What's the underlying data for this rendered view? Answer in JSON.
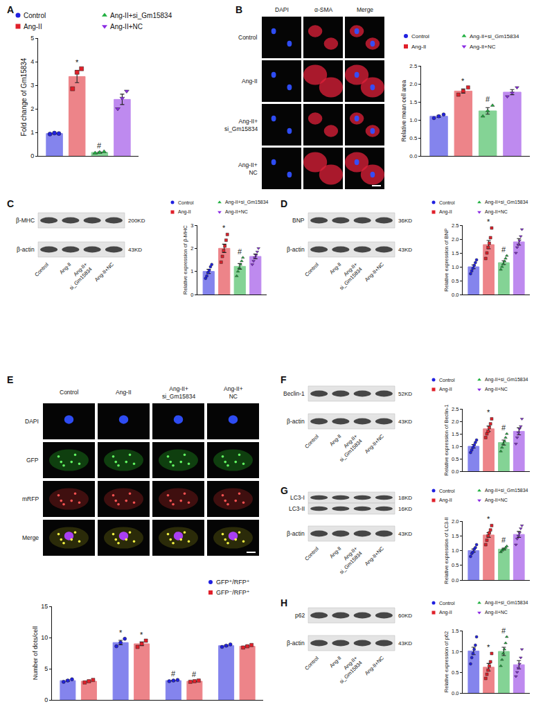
{
  "chart_data": [
    {
      "type": "bar",
      "categories": [
        null
      ],
      "ylabel": "Fold change of Gm15834",
      "ylim": [
        0,
        5
      ],
      "yticks": [
        0,
        1,
        2,
        3,
        4,
        5
      ],
      "grid": false,
      "tick_labels": "y",
      "legend": "top",
      "series": [
        {
          "name": "Control",
          "color": "#2020e0",
          "marker": "circle",
          "values": [
            0.95
          ],
          "errors": [
            0.02
          ],
          "points": [
            [
              0.93,
              0.97,
              0.95
            ]
          ]
        },
        {
          "name": "Ang-II",
          "color": "#e0202a",
          "marker": "square",
          "values": [
            3.37
          ],
          "errors": [
            0.26
          ],
          "points": [
            [
              2.85,
              3.55,
              3.7
            ]
          ]
        },
        {
          "name": "Ang-II+si_Gm15834",
          "color": "#20b040",
          "marker": "triangle-up",
          "values": [
            0.15
          ],
          "errors": [
            0.02
          ],
          "points": [
            [
              0.12,
              0.15,
              0.18
            ]
          ]
        },
        {
          "name": "Ang-II+NC",
          "color": "#8a2be2",
          "marker": "triangle-down",
          "values": [
            2.4
          ],
          "errors": [
            0.22
          ],
          "points": [
            [
              2.0,
              2.45,
              2.75
            ]
          ]
        }
      ],
      "annotations": [
        {
          "text": "*",
          "series": "Ang-II"
        },
        {
          "text": "#",
          "series": "Ang-II+si_Gm15834"
        }
      ]
    },
    {
      "type": "bar",
      "categories": [
        null
      ],
      "ylabel": "Relative mean cell area",
      "ylim": [
        0,
        2.5
      ],
      "yticks": [
        {
          "value": 0,
          "label": "0.0"
        },
        0.5,
        {
          "value": 1,
          "label": "1.0"
        },
        1.5,
        {
          "value": 2,
          "label": "2.0"
        },
        2.5
      ],
      "grid": false,
      "tick_labels": "y",
      "legend": "top",
      "series": [
        {
          "name": "Control",
          "color": "#2020e0",
          "marker": "circle",
          "values": [
            1.1
          ],
          "errors": [
            0.03
          ],
          "points": [
            [
              1.05,
              1.1,
              1.15
            ]
          ]
        },
        {
          "name": "Ang-II",
          "color": "#e0202a",
          "marker": "square",
          "values": [
            1.8
          ],
          "errors": [
            0.06
          ],
          "points": [
            [
              1.7,
              1.8,
              1.9
            ]
          ]
        },
        {
          "name": "Ang-II+si_Gm15834",
          "color": "#20b040",
          "marker": "triangle-up",
          "values": [
            1.25
          ],
          "errors": [
            0.09
          ],
          "points": [
            [
              1.1,
              1.25,
              1.4
            ]
          ]
        },
        {
          "name": "Ang-II+NC",
          "color": "#8a2be2",
          "marker": "triangle-down",
          "values": [
            1.77
          ],
          "errors": [
            0.07
          ],
          "points": [
            [
              1.65,
              1.75,
              1.9
            ]
          ]
        }
      ],
      "annotations": [
        {
          "text": "*",
          "series": "Ang-II"
        },
        {
          "text": "#",
          "series": "Ang-II+si_Gm15834"
        }
      ]
    },
    {
      "type": "bar",
      "categories": [
        null
      ],
      "ylabel": "Relative expression of β-MHC",
      "ylim": [
        0,
        3
      ],
      "yticks": [
        0,
        1,
        2,
        3
      ],
      "grid": false,
      "tick_labels": "y",
      "legend": "top",
      "series": [
        {
          "name": "Control",
          "color": "#2020e0",
          "marker": "circle",
          "values": [
            1.0
          ],
          "errors": [
            0.09
          ],
          "points": [
            [
              0.7,
              0.8,
              0.95,
              1.05,
              1.2,
              1.3
            ]
          ]
        },
        {
          "name": "Ang-II",
          "color": "#e0202a",
          "marker": "square",
          "values": [
            2.0
          ],
          "errors": [
            0.18
          ],
          "points": [
            [
              1.4,
              1.65,
              1.9,
              2.1,
              2.35,
              2.6
            ]
          ]
        },
        {
          "name": "Ang-II+si_Gm15834",
          "color": "#20b040",
          "marker": "triangle-up",
          "values": [
            1.22
          ],
          "errors": [
            0.12
          ],
          "points": [
            [
              0.8,
              1.0,
              1.15,
              1.3,
              1.45,
              1.6
            ]
          ]
        },
        {
          "name": "Ang-II+NC",
          "color": "#8a2be2",
          "marker": "triangle-down",
          "values": [
            1.65
          ],
          "errors": [
            0.1
          ],
          "points": [
            [
              1.3,
              1.45,
              1.6,
              1.7,
              1.85,
              2.0
            ]
          ]
        }
      ],
      "annotations": [
        {
          "text": "*",
          "series": "Ang-II"
        },
        {
          "text": "#",
          "series": "Ang-II+si_Gm15834"
        }
      ]
    },
    {
      "type": "bar",
      "categories": [
        null
      ],
      "ylabel": "Relative expression of BNP",
      "ylim": [
        0,
        2.5
      ],
      "yticks": [
        {
          "value": 0,
          "label": "0.0"
        },
        0.5,
        {
          "value": 1,
          "label": "1.0"
        },
        1.5,
        {
          "value": 2,
          "label": "2.0"
        },
        2.5
      ],
      "grid": false,
      "tick_labels": "y",
      "legend": "top",
      "series": [
        {
          "name": "Control",
          "color": "#2020e0",
          "marker": "circle",
          "values": [
            1.0
          ],
          "errors": [
            0.07
          ],
          "points": [
            [
              0.75,
              0.85,
              0.95,
              1.05,
              1.15,
              1.25
            ]
          ]
        },
        {
          "name": "Ang-II",
          "color": "#e0202a",
          "marker": "square",
          "values": [
            1.8
          ],
          "errors": [
            0.15
          ],
          "points": [
            [
              1.3,
              1.5,
              1.7,
              1.85,
              2.05,
              2.4
            ]
          ]
        },
        {
          "name": "Ang-II+si_Gm15834",
          "color": "#20b040",
          "marker": "triangle-up",
          "values": [
            1.15
          ],
          "errors": [
            0.07
          ],
          "points": [
            [
              0.9,
              1.0,
              1.1,
              1.2,
              1.3,
              1.4
            ]
          ]
        },
        {
          "name": "Ang-II+NC",
          "color": "#8a2be2",
          "marker": "triangle-down",
          "values": [
            1.9
          ],
          "errors": [
            0.12
          ],
          "points": [
            [
              1.5,
              1.7,
              1.8,
              1.95,
              2.1,
              2.35
            ]
          ]
        }
      ],
      "annotations": [
        {
          "text": "*",
          "series": "Ang-II"
        },
        {
          "text": "#",
          "series": "Ang-II+si_Gm15834"
        }
      ]
    },
    {
      "type": "bar",
      "categories": [
        null,
        null,
        null,
        null
      ],
      "ylabel": "Number of dots/cell",
      "ylim": [
        0,
        15
      ],
      "yticks": [
        0,
        5,
        10,
        15
      ],
      "grid": false,
      "tick_labels": "y",
      "legend": "top",
      "series": [
        {
          "name": "GFP⁺/RFP⁺",
          "color": "#2020e0",
          "marker": "circle",
          "values": [
            3.1,
            9.2,
            3.1,
            8.7
          ],
          "errors": [
            0.12,
            0.35,
            0.06,
            0.12
          ],
          "points": [
            [
              2.9,
              3.1,
              3.3
            ],
            [
              8.6,
              9.2,
              9.8
            ],
            [
              3.0,
              3.1,
              3.2
            ],
            [
              8.5,
              8.7,
              8.9
            ]
          ]
        },
        {
          "name": "GFP⁻/RFP⁺",
          "color": "#e0202a",
          "marker": "square",
          "values": [
            3.0,
            9.0,
            3.0,
            8.6
          ],
          "errors": [
            0.12,
            0.29,
            0.06,
            0.12
          ],
          "points": [
            [
              2.8,
              3.0,
              3.2
            ],
            [
              8.5,
              9.0,
              9.5
            ],
            [
              2.9,
              3.0,
              3.1
            ],
            [
              8.4,
              8.6,
              8.8
            ]
          ]
        }
      ],
      "annotations": [
        {
          "text": "*",
          "series": "GFP⁺/RFP⁺",
          "category": 1
        },
        {
          "text": "*",
          "series": "GFP⁻/RFP⁺",
          "category": 1
        },
        {
          "text": "#",
          "series": "GFP⁺/RFP⁺",
          "category": 2
        },
        {
          "text": "#",
          "series": "GFP⁻/RFP⁺",
          "category": 2
        }
      ]
    },
    {
      "type": "bar",
      "categories": [
        null
      ],
      "ylabel": "Relative expression of Beclin-1",
      "ylim": [
        0,
        2.5
      ],
      "yticks": [
        {
          "value": 0,
          "label": "0.0"
        },
        0.5,
        {
          "value": 1,
          "label": "1.0"
        },
        1.5,
        {
          "value": 2,
          "label": "2.0"
        },
        2.5
      ],
      "grid": false,
      "tick_labels": "y",
      "legend": "top",
      "series": [
        {
          "name": "Control",
          "color": "#2020e0",
          "marker": "circle",
          "values": [
            1.0
          ],
          "errors": [
            0.07
          ],
          "points": [
            [
              0.75,
              0.85,
              0.95,
              1.05,
              1.15,
              1.25
            ]
          ]
        },
        {
          "name": "Ang-II",
          "color": "#e0202a",
          "marker": "square",
          "values": [
            1.7
          ],
          "errors": [
            0.11
          ],
          "points": [
            [
              1.35,
              1.5,
              1.6,
              1.75,
              1.9,
              2.1
            ]
          ]
        },
        {
          "name": "Ang-II+si_Gm15834",
          "color": "#20b040",
          "marker": "triangle-up",
          "values": [
            1.15
          ],
          "errors": [
            0.1
          ],
          "points": [
            [
              0.8,
              0.95,
              1.1,
              1.2,
              1.35,
              1.5
            ]
          ]
        },
        {
          "name": "Ang-II+NC",
          "color": "#8a2be2",
          "marker": "triangle-down",
          "values": [
            1.6
          ],
          "errors": [
            0.14
          ],
          "points": [
            [
              1.1,
              1.35,
              1.55,
              1.7,
              1.8,
              2.1
            ]
          ]
        }
      ],
      "annotations": [
        {
          "text": "*",
          "series": "Ang-II"
        },
        {
          "text": "#",
          "series": "Ang-II+si_Gm15834"
        }
      ]
    },
    {
      "type": "bar",
      "categories": [
        null
      ],
      "ylabel": "Relative expression of LC3-II",
      "ylim": [
        0,
        2
      ],
      "yticks": [
        {
          "value": 0,
          "label": "0.0"
        },
        0.5,
        {
          "value": 1,
          "label": "1.0"
        },
        1.5,
        {
          "value": 2,
          "label": "2.0"
        }
      ],
      "grid": false,
      "tick_labels": "y",
      "legend": "top",
      "series": [
        {
          "name": "Control",
          "color": "#2020e0",
          "marker": "circle",
          "values": [
            1.0
          ],
          "errors": [
            0.05
          ],
          "points": [
            [
              0.8,
              0.9,
              0.95,
              1.05,
              1.1,
              1.2
            ]
          ]
        },
        {
          "name": "Ang-II",
          "color": "#e0202a",
          "marker": "square",
          "values": [
            1.53
          ],
          "errors": [
            0.08
          ],
          "points": [
            [
              1.2,
              1.35,
              1.5,
              1.6,
              1.7,
              1.85
            ]
          ]
        },
        {
          "name": "Ang-II+si_Gm15834",
          "color": "#20b040",
          "marker": "triangle-up",
          "values": [
            1.05
          ],
          "errors": [
            0.03
          ],
          "points": [
            [
              0.95,
              1.0,
              1.05,
              1.05,
              1.1,
              1.15
            ]
          ]
        },
        {
          "name": "Ang-II+NC",
          "color": "#8a2be2",
          "marker": "triangle-down",
          "values": [
            1.55
          ],
          "errors": [
            0.1
          ],
          "points": [
            [
              1.2,
              1.4,
              1.5,
              1.6,
              1.75,
              1.85
            ]
          ]
        }
      ],
      "annotations": [
        {
          "text": "*",
          "series": "Ang-II"
        },
        {
          "text": "#",
          "series": "Ang-II+si_Gm15834"
        }
      ]
    },
    {
      "type": "bar",
      "categories": [
        null
      ],
      "ylabel": "Relative expression of p62",
      "ylim": [
        0,
        1.5
      ],
      "yticks": [
        {
          "value": 0,
          "label": "0.0"
        },
        0.5,
        {
          "value": 1,
          "label": "1.0"
        },
        1.5
      ],
      "grid": false,
      "tick_labels": "y",
      "legend": "top",
      "series": [
        {
          "name": "Control",
          "color": "#2020e0",
          "marker": "circle",
          "values": [
            1.01
          ],
          "errors": [
            0.09
          ],
          "points": [
            [
              0.7,
              0.85,
              0.95,
              1.05,
              1.15,
              1.35
            ]
          ]
        },
        {
          "name": "Ang-II",
          "color": "#e0202a",
          "marker": "square",
          "values": [
            0.62
          ],
          "errors": [
            0.09
          ],
          "points": [
            [
              0.35,
              0.45,
              0.55,
              0.65,
              0.75,
              0.95
            ]
          ]
        },
        {
          "name": "Ang-II+si_Gm15834",
          "color": "#20b040",
          "marker": "triangle-up",
          "values": [
            1.0
          ],
          "errors": [
            0.1
          ],
          "points": [
            [
              0.65,
              0.8,
              0.95,
              1.05,
              1.2,
              1.35
            ]
          ]
        },
        {
          "name": "Ang-II+NC",
          "color": "#8a2be2",
          "marker": "triangle-down",
          "values": [
            0.68
          ],
          "errors": [
            0.1
          ],
          "points": [
            [
              0.4,
              0.5,
              0.6,
              0.7,
              0.85,
              1.05
            ]
          ]
        }
      ],
      "annotations": [
        {
          "text": "*",
          "series": "Ang-II"
        },
        {
          "text": "#",
          "series": "Ang-II+si_Gm15834"
        }
      ]
    }
  ],
  "figure": {
    "panel_letters": [
      "A",
      "B",
      "C",
      "D",
      "E",
      "F",
      "G",
      "H"
    ],
    "micrographs": [
      {
        "columns": [
          "DAPI",
          "α-SMA",
          "Merge"
        ],
        "rows": [
          "Control",
          "Ang-II",
          "Ang-II+\nsi_Gm15834",
          "Ang-II+\nNC"
        ]
      },
      {
        "columns": [
          "Control",
          "Ang-II",
          "Ang-II+\nsi_Gm15834",
          "Ang-II+\nNC"
        ],
        "rows": [
          "DAPI",
          "GFP",
          "mRFP",
          "Merge"
        ]
      }
    ],
    "blots": [
      {
        "bands": [
          {
            "name": "β-MHC",
            "size": "200KD"
          },
          {
            "name": "β-actin",
            "size": "43KD"
          }
        ],
        "lanes": [
          "Control",
          "Ang-II",
          "Ang-II+\nsi_Gm15834",
          "Ang-II+NC"
        ]
      },
      {
        "bands": [
          {
            "name": "BNP",
            "size": "36KD"
          },
          {
            "name": "β-actin",
            "size": "43KD"
          }
        ],
        "lanes": [
          "Control",
          "Ang-II",
          "Ang-II+\nsi_Gm15834",
          "Ang-II+NC"
        ]
      },
      {
        "bands": [
          {
            "name": "Beclin-1",
            "size": "52KD"
          },
          {
            "name": "β-actin",
            "size": "43KD"
          }
        ],
        "lanes": [
          "Control",
          "Ang-II",
          "Ang-II+\nsi_Gm15834",
          "Ang-II+NC"
        ]
      },
      {
        "bands": [
          {
            "name": "LC3-I",
            "size": "18KD"
          },
          {
            "name": "LC3-II",
            "size": "16KD"
          },
          {
            "name": "β-actin",
            "size": "43KD"
          }
        ],
        "lanes": [
          "Control",
          "Ang-II",
          "Ang-II+\nsi_Gm15834",
          "Ang-II+NC"
        ]
      },
      {
        "bands": [
          {
            "name": "p62",
            "size": "60KD"
          },
          {
            "name": "β-actin",
            "size": "43KD"
          }
        ],
        "lanes": [
          "Control",
          "Ang-II",
          "Ang-II+\nsi_Gm15834",
          "Ang-II+NC"
        ]
      }
    ]
  }
}
